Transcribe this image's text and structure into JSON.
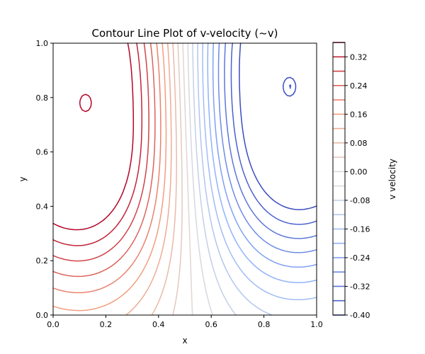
{
  "chart_data": {
    "type": "contour",
    "title": "Contour Line Plot of v-velocity (~v)",
    "xlabel": "x",
    "ylabel": "y",
    "xlim": [
      0.0,
      1.0
    ],
    "ylim": [
      0.0,
      1.0
    ],
    "xticks": [
      "0.0",
      "0.2",
      "0.4",
      "0.6",
      "0.8",
      "1.0"
    ],
    "yticks": [
      "0.0",
      "0.2",
      "0.4",
      "0.6",
      "0.8",
      "1.0"
    ],
    "grid": false,
    "colormap": "coolwarm",
    "colorbar": {
      "label": "v velocity",
      "range": [
        -0.4,
        0.36
      ],
      "levels": [
        -0.4,
        -0.36,
        -0.32,
        -0.28,
        -0.24,
        -0.2,
        -0.16,
        -0.12,
        -0.08,
        -0.04,
        0.0,
        0.04,
        0.08,
        0.12,
        0.16,
        0.2,
        0.24,
        0.28,
        0.32,
        0.36
      ],
      "tick_labels": [
        "0.32",
        "0.24",
        "0.16",
        "0.08",
        "0.00",
        "-0.08",
        "-0.16",
        "-0.24",
        "-0.32",
        "-0.40"
      ]
    },
    "field": {
      "description": "two counter-rotating lobes: positive v near x=0.12, y=0.78; negative v near x=0.9, y=0.84",
      "positive_lobe": {
        "x": 0.12,
        "y": 0.78,
        "peak": 0.345
      },
      "negative_lobe": {
        "x": 0.9,
        "y": 0.84,
        "peak": -0.375
      }
    }
  }
}
